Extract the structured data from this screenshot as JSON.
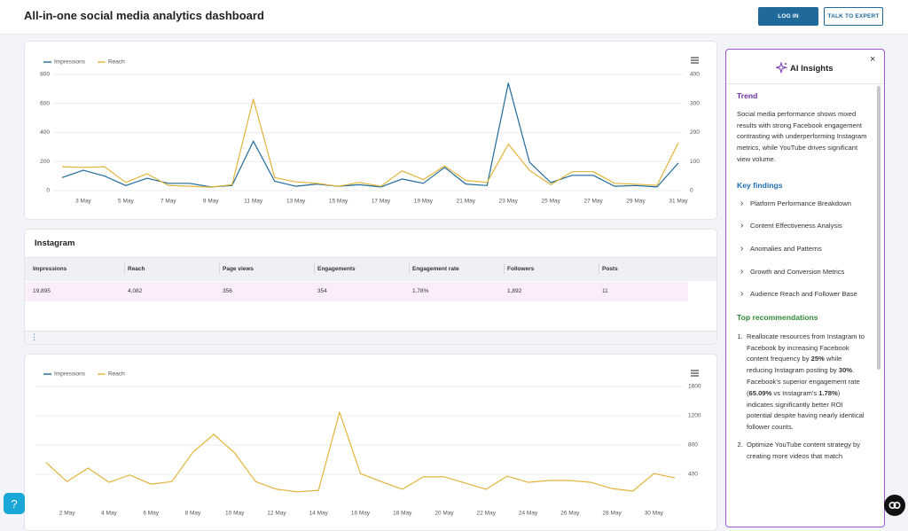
{
  "header": {
    "title": "All-in-one social media analytics dashboard",
    "login": "LOG IN",
    "expert": "TALK TO EXPERT"
  },
  "chart_data": [
    {
      "type": "line",
      "categories": [
        null,
        "3 May",
        null,
        "5 May",
        null,
        "7 May",
        null,
        "9 May",
        null,
        "11 May",
        null,
        "13 May",
        null,
        "15 May",
        null,
        "17 May",
        null,
        "19 May",
        null,
        "21 May",
        null,
        "23 May",
        null,
        "25 May",
        null,
        "27 May",
        null,
        "29 May",
        null,
        "31 May"
      ],
      "series": [
        {
          "name": "Impressions",
          "color": "#1f6a9a",
          "values": [
            90,
            140,
            100,
            35,
            85,
            50,
            50,
            25,
            35,
            340,
            65,
            30,
            45,
            30,
            40,
            25,
            80,
            50,
            160,
            45,
            35,
            740,
            195,
            55,
            105,
            105,
            30,
            35,
            25,
            190
          ]
        },
        {
          "name": "Reach",
          "color": "#e2b43a",
          "axis": "y2",
          "values": [
            82,
            80,
            82,
            28,
            58,
            18,
            15,
            12,
            20,
            315,
            45,
            30,
            25,
            15,
            28,
            15,
            68,
            38,
            85,
            35,
            28,
            160,
            70,
            20,
            65,
            65,
            25,
            22,
            18,
            165
          ]
        }
      ],
      "ylim": [
        0,
        800
      ],
      "yticks": [
        0,
        200,
        400,
        600,
        800
      ],
      "y2lim": [
        0,
        400
      ],
      "y2ticks": [
        0,
        100,
        200,
        300,
        400
      ],
      "grid": true,
      "legend": "top-left"
    },
    {
      "type": "line",
      "categories": [
        null,
        "2 May",
        null,
        "4 May",
        null,
        "6 May",
        null,
        "8 May",
        null,
        "10 May",
        null,
        "12 May",
        null,
        "14 May",
        null,
        "16 May",
        null,
        "18 May",
        null,
        "20 May",
        null,
        "22 May",
        null,
        "24 May",
        null,
        "26 May",
        null,
        "28 May",
        null,
        "30 May",
        null
      ],
      "series": [
        {
          "name": "Impressions",
          "color": "#1f6a9a"
        },
        {
          "name": "Reach",
          "color": "#e2b43a",
          "axis": "y2",
          "values": [
            560,
            300,
            485,
            290,
            390,
            265,
            300,
            700,
            945,
            690,
            300,
            195,
            160,
            180,
            1250,
            410,
            300,
            195,
            365,
            365,
            280,
            195,
            375,
            290,
            315,
            315,
            290,
            205,
            170,
            410,
            350
          ]
        }
      ],
      "y2lim": [
        0,
        1600
      ],
      "y2ticks": [
        400,
        800,
        1200,
        1600
      ],
      "grid": true,
      "legend": "top-left"
    }
  ],
  "instagram": {
    "title": "Instagram",
    "columns": [
      "Impressions",
      "Reach",
      "Page views",
      "Engagements",
      "Engagement rate",
      "Followers",
      "Posts"
    ],
    "row": [
      "19,895",
      "4,082",
      "356",
      "354",
      "1.78%",
      "1,892",
      "11"
    ]
  },
  "insights": {
    "title": "AI Insights",
    "trend_heading": "Trend",
    "trend": "Social media performance shows mixed results with strong Facebook engagement contrasting with underperforming Instagram metrics, while YouTube drives significant view volume.",
    "findings_heading": "Key findings",
    "findings": [
      "Platform Performance Breakdown",
      "Content Effectiveness Analysis",
      "Anomalies and Patterns",
      "Growth and Conversion Metrics",
      "Audience Reach and Follower Base"
    ],
    "recommendations_heading": "Top recommendations",
    "recommendations": [
      [
        {
          "text": "Reallocate resources from Instagram to Facebook by increasing Facebook content frequency by ",
          "bold": false
        },
        {
          "text": "25%",
          "bold": true
        },
        {
          "text": " while reducing Instagram posting by ",
          "bold": false
        },
        {
          "text": "30%",
          "bold": true
        },
        {
          "text": ". Facebook's superior engagement rate (",
          "bold": false
        },
        {
          "text": "65.09%",
          "bold": true
        },
        {
          "text": " vs Instagram's ",
          "bold": false
        },
        {
          "text": "1.78%",
          "bold": true
        },
        {
          "text": ") indicates significantly better ROI potential despite having nearly identical follower counts.",
          "bold": false
        }
      ],
      [
        {
          "text": "Optimize YouTube content strategy by creating more videos that match",
          "bold": false
        }
      ]
    ]
  },
  "help": "?"
}
